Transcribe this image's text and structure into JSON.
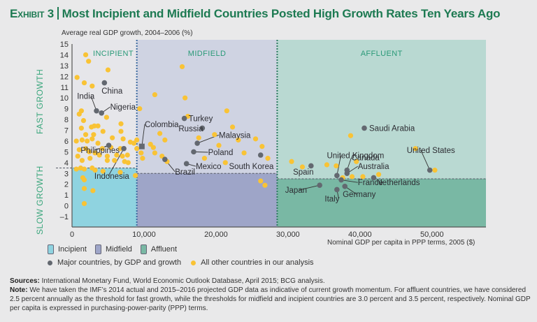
{
  "header": {
    "exhibit": "Exhibit 3",
    "title": "Most Incipient and Midfield Countries Posted High Growth Rates Ten Years Ago"
  },
  "chart_data": {
    "type": "scatter",
    "title": "Most Incipient and Midfield Countries Posted High Growth Rates Ten Years Ago",
    "ylabel": "Average real GDP growth, 2004–2006 (%)",
    "xlabel": "Nominal GDP per capita in PPP terms, 2005 ($)",
    "xlim": [
      0,
      57500
    ],
    "ylim": [
      -2,
      15
    ],
    "xticks": [
      "0",
      "10,000",
      "20,000",
      "30,000",
      "40,000",
      "50,000"
    ],
    "xtick_values": [
      0,
      10000,
      20000,
      30000,
      40000,
      50000
    ],
    "yticks": [
      "–1",
      "0",
      "1",
      "2",
      "3",
      "4",
      "5",
      "6",
      "7",
      "8",
      "9",
      "10",
      "11",
      "12",
      "13",
      "14",
      "15"
    ],
    "ytick_values": [
      -1,
      0,
      1,
      2,
      3,
      4,
      5,
      6,
      7,
      8,
      9,
      10,
      11,
      12,
      13,
      14,
      15
    ],
    "side_labels": {
      "fast": "FAST GROWTH",
      "slow": "SLOW GROWTH"
    },
    "regions": [
      {
        "name": "INCIPIENT",
        "x_range": [
          0,
          9000
        ],
        "threshold": 3.5,
        "fast_color": "#e6e6ea",
        "slow_color": "#8fd3e0"
      },
      {
        "name": "MIDFIELD",
        "x_range": [
          9000,
          28500
        ],
        "threshold": 3.0,
        "fast_color": "#cfd3e2",
        "slow_color": "#9ea5c8"
      },
      {
        "name": "AFFLUENT",
        "x_range": [
          28500,
          57500
        ],
        "threshold": 2.5,
        "fast_color": "#b9d9d2",
        "slow_color": "#79b8a4"
      }
    ],
    "major_countries": [
      {
        "name": "China",
        "x": 4500,
        "y": 11.4
      },
      {
        "name": "India",
        "x": 3400,
        "y": 8.8
      },
      {
        "name": "Nigeria",
        "x": 4100,
        "y": 8.6
      },
      {
        "name": "Philippines",
        "x": 5100,
        "y": 5.6
      },
      {
        "name": "Indonesia",
        "x": 7200,
        "y": 5.3
      },
      {
        "name": "Colombia",
        "x": 9700,
        "y": 5.5,
        "shape": "square"
      },
      {
        "name": "Turkey",
        "x": 15600,
        "y": 8.1
      },
      {
        "name": "Russia",
        "x": 18100,
        "y": 7.2
      },
      {
        "name": "Malaysia",
        "x": 17400,
        "y": 5.8
      },
      {
        "name": "Poland",
        "x": 16900,
        "y": 5.0
      },
      {
        "name": "Brazil",
        "x": 12900,
        "y": 4.3
      },
      {
        "name": "Mexico",
        "x": 15900,
        "y": 3.9
      },
      {
        "name": "South Korea",
        "x": 26200,
        "y": 4.7
      },
      {
        "name": "Saudi Arabia",
        "x": 40600,
        "y": 7.2
      },
      {
        "name": "United Kingdom",
        "x": 36800,
        "y": 2.8
      },
      {
        "name": "Canada",
        "x": 38200,
        "y": 3.3
      },
      {
        "name": "Australia",
        "x": 38200,
        "y": 3.0
      },
      {
        "name": "Spain",
        "x": 33200,
        "y": 3.7
      },
      {
        "name": "France",
        "x": 37400,
        "y": 2.4
      },
      {
        "name": "Netherlands",
        "x": 41900,
        "y": 2.6
      },
      {
        "name": "Japan",
        "x": 34400,
        "y": 1.9
      },
      {
        "name": "Italy",
        "x": 36800,
        "y": 1.5
      },
      {
        "name": "Germany",
        "x": 37900,
        "y": 1.8
      },
      {
        "name": "United States",
        "x": 49700,
        "y": 3.3
      }
    ],
    "other_countries": [
      [
        1900,
        14.0
      ],
      [
        2300,
        13.4
      ],
      [
        5000,
        12.6
      ],
      [
        700,
        11.9
      ],
      [
        1700,
        11.4
      ],
      [
        2800,
        11.1
      ],
      [
        1000,
        8.5
      ],
      [
        1300,
        8.8
      ],
      [
        4800,
        8.2
      ],
      [
        1600,
        7.9
      ],
      [
        1300,
        7.2
      ],
      [
        2700,
        7.3
      ],
      [
        3100,
        7.4
      ],
      [
        3600,
        7.4
      ],
      [
        4300,
        6.9
      ],
      [
        1900,
        6.6
      ],
      [
        3000,
        6.6
      ],
      [
        6800,
        6.9
      ],
      [
        7100,
        6.2
      ],
      [
        6800,
        7.6
      ],
      [
        600,
        6.0
      ],
      [
        1400,
        6.1
      ],
      [
        2100,
        6.0
      ],
      [
        2800,
        6.2
      ],
      [
        3600,
        5.8
      ],
      [
        4200,
        5.3
      ],
      [
        5400,
        5.4
      ],
      [
        5600,
        6.3
      ],
      [
        8100,
        5.9
      ],
      [
        8600,
        5.8
      ],
      [
        1000,
        5.2
      ],
      [
        1900,
        5.3
      ],
      [
        2400,
        5.0
      ],
      [
        3200,
        4.9
      ],
      [
        3800,
        4.7
      ],
      [
        4900,
        4.6
      ],
      [
        6200,
        4.7
      ],
      [
        6700,
        5.3
      ],
      [
        7000,
        4.6
      ],
      [
        7700,
        4.7
      ],
      [
        9800,
        4.4
      ],
      [
        800,
        4.6
      ],
      [
        1400,
        4.2
      ],
      [
        2500,
        4.4
      ],
      [
        4900,
        4.2
      ],
      [
        5900,
        4.2
      ],
      [
        7300,
        4.1
      ],
      [
        7800,
        4.0
      ],
      [
        600,
        3.4
      ],
      [
        1200,
        3.5
      ],
      [
        1700,
        3.4
      ],
      [
        2800,
        3.5
      ],
      [
        3200,
        3.3
      ],
      [
        4300,
        3.2
      ],
      [
        6700,
        3.1
      ],
      [
        1500,
        2.6
      ],
      [
        1700,
        2.4
      ],
      [
        1700,
        1.6
      ],
      [
        2900,
        1.4
      ],
      [
        1700,
        0.2
      ],
      [
        8800,
        2.8
      ],
      [
        9400,
        9.0
      ],
      [
        9000,
        6.1
      ],
      [
        9000,
        5.3
      ],
      [
        9600,
        4.9
      ],
      [
        10900,
        5.7
      ],
      [
        11300,
        5.4
      ],
      [
        11500,
        4.9
      ],
      [
        12200,
        6.7
      ],
      [
        12900,
        6.1
      ],
      [
        12500,
        4.6
      ],
      [
        13200,
        4.1
      ],
      [
        11500,
        10.3
      ],
      [
        15300,
        12.9
      ],
      [
        15700,
        10.0
      ],
      [
        16100,
        8.3
      ],
      [
        17600,
        6.3
      ],
      [
        18400,
        4.4
      ],
      [
        19800,
        6.6
      ],
      [
        20400,
        5.6
      ],
      [
        21300,
        4.0
      ],
      [
        21500,
        8.8
      ],
      [
        22300,
        7.3
      ],
      [
        23100,
        6.1
      ],
      [
        23900,
        4.9
      ],
      [
        25500,
        6.2
      ],
      [
        26400,
        5.5
      ],
      [
        27200,
        4.4
      ],
      [
        26200,
        2.3
      ],
      [
        26800,
        1.9
      ],
      [
        30500,
        4.1
      ],
      [
        32000,
        3.6
      ],
      [
        35400,
        3.8
      ],
      [
        36700,
        3.7
      ],
      [
        37600,
        2.6
      ],
      [
        38900,
        2.7
      ],
      [
        39500,
        4.1
      ],
      [
        38700,
        6.5
      ],
      [
        40400,
        2.7
      ],
      [
        42600,
        2.9
      ],
      [
        47700,
        5.3
      ],
      [
        50400,
        3.3
      ]
    ],
    "legend": {
      "regions": [
        "Incipient",
        "Midfield",
        "Affluent"
      ],
      "markers": [
        "Major countries, by GDP and growth",
        "All other countries in our analysis"
      ]
    },
    "colors": {
      "major": "#636870",
      "other": "#f9c335",
      "title": "#1d7a52",
      "region_label": "#2a9a78"
    }
  },
  "footer": {
    "sources_label": "Sources:",
    "sources_text": " International Monetary Fund, World Economic Outlook Database, April 2015; BCG analysis.",
    "note_label": "Note:",
    "note_text": " We have taken the IMF’s 2014 actual and 2015–2016 projected GDP data as indicative of current growth momentum. For affluent countries, we have considered 2.5 percent annually as the threshold for fast growth, while the thresholds for midfield and incipient countries are 3.0 percent and 3.5 percent, respectively. Nominal GDP per capita is expressed in purchasing-power-parity (PPP) terms."
  }
}
